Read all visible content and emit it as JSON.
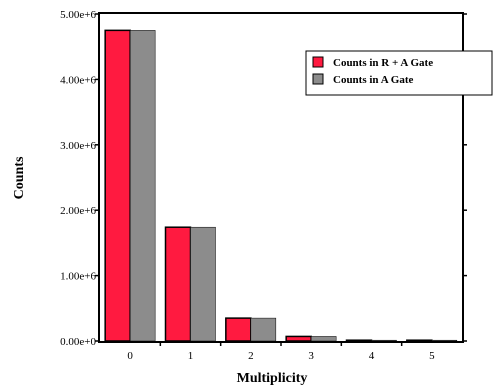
{
  "chart_data": {
    "type": "bar",
    "xlabel": "Multiplicity",
    "ylabel": "Counts",
    "categories": [
      "0",
      "1",
      "2",
      "3",
      "4",
      "5"
    ],
    "y_tick_labels": [
      "0.00e+0",
      "1.00e+6",
      "2.00e+6",
      "3.00e+6",
      "4.00e+6",
      "5.00e+6"
    ],
    "y_ticks": [
      0,
      1000000,
      2000000,
      3000000,
      4000000,
      5000000
    ],
    "ylim": [
      0,
      5000000
    ],
    "series": [
      {
        "name": "Counts in R + A Gate",
        "color": "#ff1a40",
        "values": [
          4750000,
          1740000,
          350000,
          70000,
          5000,
          1000
        ]
      },
      {
        "name": "Counts in A Gate",
        "color": "#8c8c8c",
        "values": [
          4750000,
          1740000,
          350000,
          70000,
          5000,
          1000
        ]
      }
    ],
    "legend_position": "top-right",
    "grid": false
  }
}
